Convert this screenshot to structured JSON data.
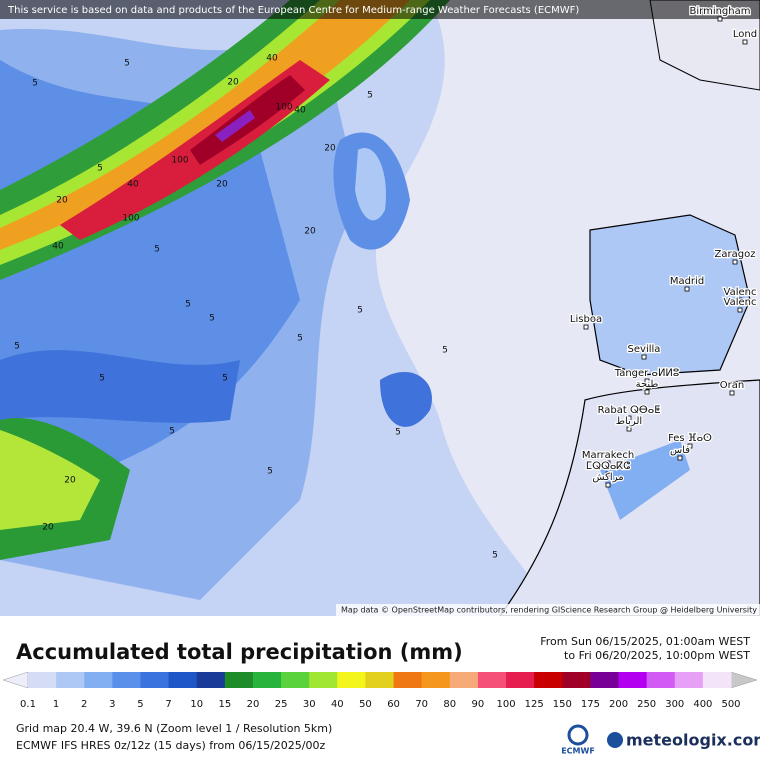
{
  "banner": "This service is based on data and products of the European Centre for Medium-range Weather Forecasts (ECMWF)",
  "attribution": "Map data © OpenStreetMap contributors, rendering GIScience Research Group @ Heidelberg University",
  "cities": [
    "Birmingham",
    "Lond",
    "Zaragoz",
    "Madrid",
    "Valenc",
    "Valenc",
    "Lisboa",
    "Sevilla",
    "Tanger ⴰⵍⵍⵓ",
    "طنجة",
    "Oran",
    "Rabat ⵕⴱⴰⵟ",
    "الرباط",
    "Fes ⴼⴰⵙ",
    "فاس",
    "Marrakech",
    "ⵎⵕⵕⴰⴽⵛ",
    "مراكش"
  ],
  "contour_labels": [
    "40",
    "20",
    "100",
    "40",
    "100",
    "20",
    "40",
    "20",
    "40",
    "100",
    "5",
    "5",
    "20",
    "5",
    "5",
    "5",
    "5",
    "5",
    "5",
    "5",
    "5",
    "5",
    "5",
    "20",
    "20",
    "20",
    "5",
    "5",
    "5",
    "5",
    "5"
  ],
  "title": "Accumulated total precipitation (mm)",
  "period_from": "From Sun 06/15/2025, 01:00am WEST",
  "period_to": "to Fri 06/20/2025, 10:00pm WEST",
  "legend": {
    "labels": [
      "0.1",
      "1",
      "2",
      "3",
      "5",
      "7",
      "10",
      "15",
      "20",
      "25",
      "30",
      "40",
      "50",
      "60",
      "70",
      "80",
      "90",
      "100",
      "125",
      "150",
      "175",
      "200",
      "250",
      "300",
      "400",
      "500"
    ],
    "colors": [
      "#d4dcf6",
      "#aec8f6",
      "#82aef2",
      "#5a90ea",
      "#3a72de",
      "#1f56c8",
      "#1a3c98",
      "#1e8c28",
      "#28b43c",
      "#5ad23c",
      "#a0e632",
      "#f5f51e",
      "#e2cf1e",
      "#f07814",
      "#f5961e",
      "#f5aa78",
      "#f55078",
      "#e61e50",
      "#c80000",
      "#a00028",
      "#780096",
      "#b400f0",
      "#d25af5",
      "#e6a0f5",
      "#f3e4fa"
    ]
  },
  "grid_info": "Grid map 20.4 W, 39.6 N (Zoom level 1 / Resolution 5km)",
  "model_info": "ECMWF IFS HRES 0z/12z (15 days) from  06/15/2025/00z",
  "ecmwf_logo": "ECMWF",
  "brand": "meteologix.com"
}
